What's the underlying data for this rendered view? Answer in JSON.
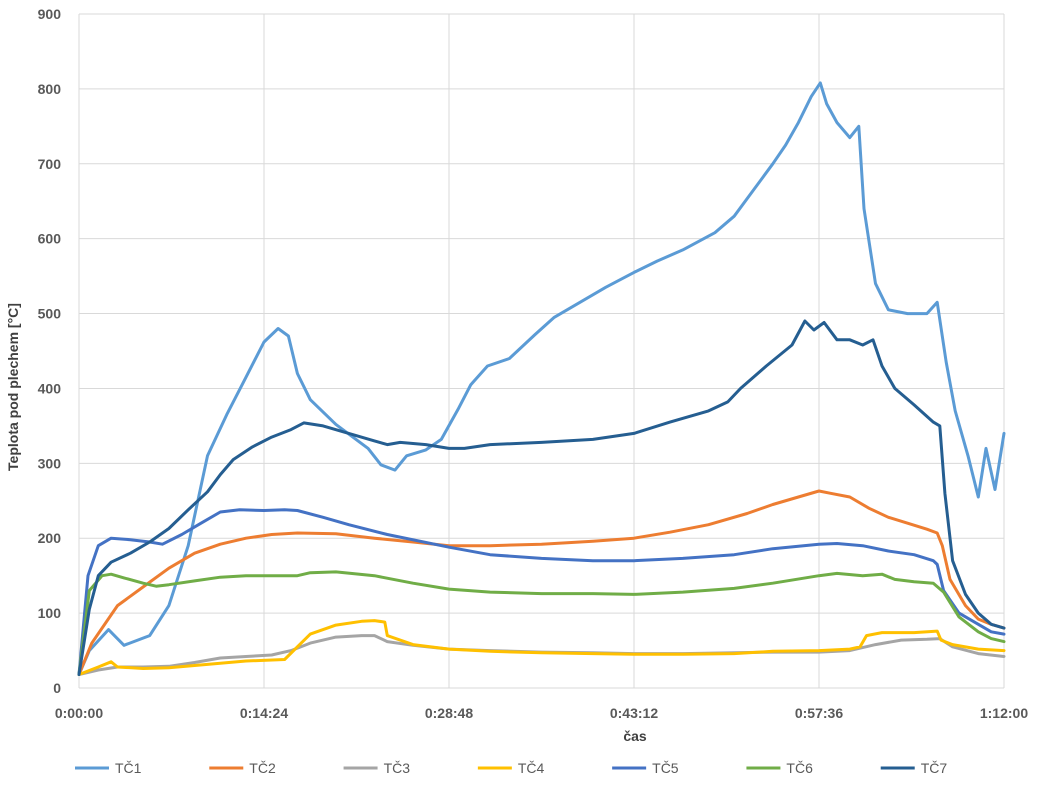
{
  "chart_data": {
    "type": "line",
    "title": "",
    "xlabel": "čas",
    "ylabel": "Teplota pod plechem [°C]",
    "xlim": [
      0,
      72
    ],
    "ylim": [
      0,
      900
    ],
    "x_unit": "minutes",
    "xticks": [
      {
        "value": 0,
        "label": "0:00:00"
      },
      {
        "value": 14.4,
        "label": "0:14:24"
      },
      {
        "value": 28.8,
        "label": "0:28:48"
      },
      {
        "value": 43.2,
        "label": "0:43:12"
      },
      {
        "value": 57.6,
        "label": "0:57:36"
      },
      {
        "value": 72,
        "label": "1:12:00"
      }
    ],
    "yticks": [
      0,
      100,
      200,
      300,
      400,
      500,
      600,
      700,
      800,
      900
    ],
    "grid": true,
    "legend_position": "bottom",
    "series": [
      {
        "name": "TČ1",
        "color": "#5B9BD5",
        "points": [
          [
            0,
            18
          ],
          [
            0.8,
            50
          ],
          [
            2.3,
            78
          ],
          [
            3.5,
            57
          ],
          [
            5.5,
            70
          ],
          [
            7,
            110
          ],
          [
            8.5,
            190
          ],
          [
            10,
            310
          ],
          [
            11.5,
            365
          ],
          [
            13,
            415
          ],
          [
            14.4,
            462
          ],
          [
            15.5,
            480
          ],
          [
            16.3,
            470
          ],
          [
            17,
            420
          ],
          [
            18,
            385
          ],
          [
            20,
            352
          ],
          [
            22.5,
            320
          ],
          [
            23.5,
            298
          ],
          [
            24.6,
            291
          ],
          [
            25.5,
            310
          ],
          [
            27,
            318
          ],
          [
            28.2,
            332
          ],
          [
            29.5,
            372
          ],
          [
            30.5,
            405
          ],
          [
            31.8,
            430
          ],
          [
            33.5,
            440
          ],
          [
            35.5,
            472
          ],
          [
            37,
            495
          ],
          [
            39,
            515
          ],
          [
            41,
            535
          ],
          [
            43.2,
            555
          ],
          [
            45,
            570
          ],
          [
            47,
            585
          ],
          [
            49.5,
            608
          ],
          [
            51,
            630
          ],
          [
            52.5,
            665
          ],
          [
            54,
            700
          ],
          [
            55,
            725
          ],
          [
            56,
            755
          ],
          [
            57,
            790
          ],
          [
            57.7,
            808
          ],
          [
            58.2,
            780
          ],
          [
            59,
            755
          ],
          [
            60,
            735
          ],
          [
            60.7,
            750
          ],
          [
            61.1,
            640
          ],
          [
            62,
            540
          ],
          [
            63,
            505
          ],
          [
            64.5,
            500
          ],
          [
            66,
            500
          ],
          [
            66.8,
            515
          ],
          [
            67.5,
            435
          ],
          [
            68.2,
            370
          ],
          [
            69.2,
            310
          ],
          [
            70,
            255
          ],
          [
            70.6,
            320
          ],
          [
            71.3,
            265
          ],
          [
            72,
            340
          ]
        ]
      },
      {
        "name": "TČ2",
        "color": "#ED7D31",
        "points": [
          [
            0,
            18
          ],
          [
            1,
            60
          ],
          [
            3,
            110
          ],
          [
            5,
            135
          ],
          [
            7,
            160
          ],
          [
            9,
            180
          ],
          [
            11,
            192
          ],
          [
            13,
            200
          ],
          [
            15,
            205
          ],
          [
            17,
            207
          ],
          [
            20,
            206
          ],
          [
            23,
            200
          ],
          [
            26,
            195
          ],
          [
            28.8,
            190
          ],
          [
            32,
            190
          ],
          [
            36,
            192
          ],
          [
            40,
            196
          ],
          [
            43.2,
            200
          ],
          [
            46,
            208
          ],
          [
            49,
            218
          ],
          [
            52,
            233
          ],
          [
            54,
            245
          ],
          [
            56,
            255
          ],
          [
            57.6,
            263
          ],
          [
            58.5,
            260
          ],
          [
            60,
            255
          ],
          [
            61.5,
            240
          ],
          [
            63,
            228
          ],
          [
            64.5,
            220
          ],
          [
            66,
            212
          ],
          [
            66.8,
            207
          ],
          [
            67.2,
            190
          ],
          [
            67.8,
            145
          ],
          [
            69,
            110
          ],
          [
            70,
            92
          ],
          [
            71,
            85
          ],
          [
            72,
            80
          ]
        ]
      },
      {
        "name": "TČ3",
        "color": "#A5A5A5",
        "points": [
          [
            0,
            18
          ],
          [
            1.5,
            24
          ],
          [
            3,
            28
          ],
          [
            5,
            28
          ],
          [
            7,
            29
          ],
          [
            9,
            34
          ],
          [
            11,
            40
          ],
          [
            13,
            42
          ],
          [
            15,
            44
          ],
          [
            16.5,
            50
          ],
          [
            18,
            60
          ],
          [
            20,
            68
          ],
          [
            22,
            70
          ],
          [
            23,
            70
          ],
          [
            24,
            62
          ],
          [
            26,
            57
          ],
          [
            28.8,
            52
          ],
          [
            32,
            50
          ],
          [
            36,
            48
          ],
          [
            40,
            47
          ],
          [
            43.2,
            46
          ],
          [
            47,
            46
          ],
          [
            51,
            47
          ],
          [
            54,
            48
          ],
          [
            57.6,
            48
          ],
          [
            60,
            50
          ],
          [
            62,
            58
          ],
          [
            64,
            64
          ],
          [
            66,
            65
          ],
          [
            67,
            66
          ],
          [
            68,
            55
          ],
          [
            70,
            46
          ],
          [
            72,
            42
          ]
        ]
      },
      {
        "name": "TČ4",
        "color": "#FFC000",
        "points": [
          [
            0,
            18
          ],
          [
            1.5,
            28
          ],
          [
            2.5,
            35
          ],
          [
            3,
            28
          ],
          [
            5,
            26
          ],
          [
            7,
            27
          ],
          [
            9,
            30
          ],
          [
            11,
            33
          ],
          [
            13,
            36
          ],
          [
            16,
            38
          ],
          [
            17,
            55
          ],
          [
            18,
            72
          ],
          [
            20,
            84
          ],
          [
            22,
            89
          ],
          [
            23,
            90
          ],
          [
            23.8,
            88
          ],
          [
            24,
            70
          ],
          [
            26,
            58
          ],
          [
            28.8,
            52
          ],
          [
            32,
            49
          ],
          [
            36,
            47
          ],
          [
            40,
            46
          ],
          [
            43.2,
            45
          ],
          [
            47,
            45
          ],
          [
            51,
            46
          ],
          [
            54,
            49
          ],
          [
            57.6,
            50
          ],
          [
            60,
            52
          ],
          [
            60.8,
            55
          ],
          [
            61.3,
            70
          ],
          [
            62.5,
            74
          ],
          [
            65,
            74
          ],
          [
            66.8,
            76
          ],
          [
            67.1,
            64
          ],
          [
            68,
            58
          ],
          [
            70,
            52
          ],
          [
            72,
            50
          ]
        ]
      },
      {
        "name": "TČ5",
        "color": "#4472C4",
        "points": [
          [
            0,
            18
          ],
          [
            0.7,
            150
          ],
          [
            1.5,
            190
          ],
          [
            2.5,
            200
          ],
          [
            4,
            198
          ],
          [
            5.5,
            195
          ],
          [
            6.5,
            192
          ],
          [
            8,
            205
          ],
          [
            9.5,
            220
          ],
          [
            11,
            235
          ],
          [
            12.5,
            238
          ],
          [
            14.4,
            237
          ],
          [
            16,
            238
          ],
          [
            17,
            237
          ],
          [
            19,
            228
          ],
          [
            21,
            218
          ],
          [
            24,
            205
          ],
          [
            28.8,
            188
          ],
          [
            32,
            178
          ],
          [
            36,
            173
          ],
          [
            40,
            170
          ],
          [
            43.2,
            170
          ],
          [
            47,
            173
          ],
          [
            51,
            178
          ],
          [
            54,
            186
          ],
          [
            57.6,
            192
          ],
          [
            59,
            193
          ],
          [
            61,
            190
          ],
          [
            63,
            183
          ],
          [
            65,
            178
          ],
          [
            66.5,
            170
          ],
          [
            66.8,
            165
          ],
          [
            67.3,
            130
          ],
          [
            68.5,
            100
          ],
          [
            70,
            85
          ],
          [
            71,
            75
          ],
          [
            72,
            72
          ]
        ]
      },
      {
        "name": "TČ6",
        "color": "#70AD47",
        "points": [
          [
            0,
            18
          ],
          [
            0.8,
            130
          ],
          [
            1.8,
            150
          ],
          [
            2.5,
            152
          ],
          [
            3.5,
            147
          ],
          [
            5,
            140
          ],
          [
            6,
            136
          ],
          [
            7,
            138
          ],
          [
            9,
            143
          ],
          [
            11,
            148
          ],
          [
            13,
            150
          ],
          [
            15,
            150
          ],
          [
            17,
            150
          ],
          [
            18,
            154
          ],
          [
            20,
            155
          ],
          [
            23,
            150
          ],
          [
            26,
            140
          ],
          [
            28.8,
            132
          ],
          [
            32,
            128
          ],
          [
            36,
            126
          ],
          [
            40,
            126
          ],
          [
            43.2,
            125
          ],
          [
            47,
            128
          ],
          [
            51,
            133
          ],
          [
            54,
            140
          ],
          [
            57.6,
            150
          ],
          [
            59,
            153
          ],
          [
            61,
            150
          ],
          [
            62.5,
            152
          ],
          [
            63.5,
            145
          ],
          [
            65,
            142
          ],
          [
            66.5,
            140
          ],
          [
            67.3,
            128
          ],
          [
            68.5,
            95
          ],
          [
            70,
            75
          ],
          [
            71,
            66
          ],
          [
            72,
            62
          ]
        ]
      },
      {
        "name": "TČ7",
        "color": "#255E91",
        "points": [
          [
            0,
            18
          ],
          [
            0.8,
            105
          ],
          [
            1.5,
            150
          ],
          [
            2.5,
            168
          ],
          [
            4,
            180
          ],
          [
            5.5,
            195
          ],
          [
            7,
            213
          ],
          [
            8.5,
            238
          ],
          [
            10,
            262
          ],
          [
            11,
            285
          ],
          [
            12,
            305
          ],
          [
            13.5,
            322
          ],
          [
            15,
            335
          ],
          [
            16.5,
            345
          ],
          [
            17.5,
            354
          ],
          [
            19,
            350
          ],
          [
            21,
            340
          ],
          [
            23,
            330
          ],
          [
            24,
            325
          ],
          [
            25,
            328
          ],
          [
            27,
            325
          ],
          [
            28.8,
            320
          ],
          [
            30,
            320
          ],
          [
            32,
            325
          ],
          [
            36,
            328
          ],
          [
            40,
            332
          ],
          [
            43.2,
            340
          ],
          [
            46,
            355
          ],
          [
            49,
            370
          ],
          [
            50.5,
            382
          ],
          [
            51.5,
            400
          ],
          [
            53.5,
            430
          ],
          [
            55.5,
            458
          ],
          [
            56.5,
            490
          ],
          [
            57.2,
            478
          ],
          [
            58,
            488
          ],
          [
            59,
            465
          ],
          [
            60,
            465
          ],
          [
            61,
            458
          ],
          [
            61.8,
            465
          ],
          [
            62.5,
            430
          ],
          [
            63.5,
            400
          ],
          [
            65,
            378
          ],
          [
            66.5,
            355
          ],
          [
            67,
            350
          ],
          [
            67.4,
            260
          ],
          [
            68,
            170
          ],
          [
            69,
            125
          ],
          [
            70,
            100
          ],
          [
            71,
            85
          ],
          [
            72,
            80
          ]
        ]
      }
    ]
  }
}
